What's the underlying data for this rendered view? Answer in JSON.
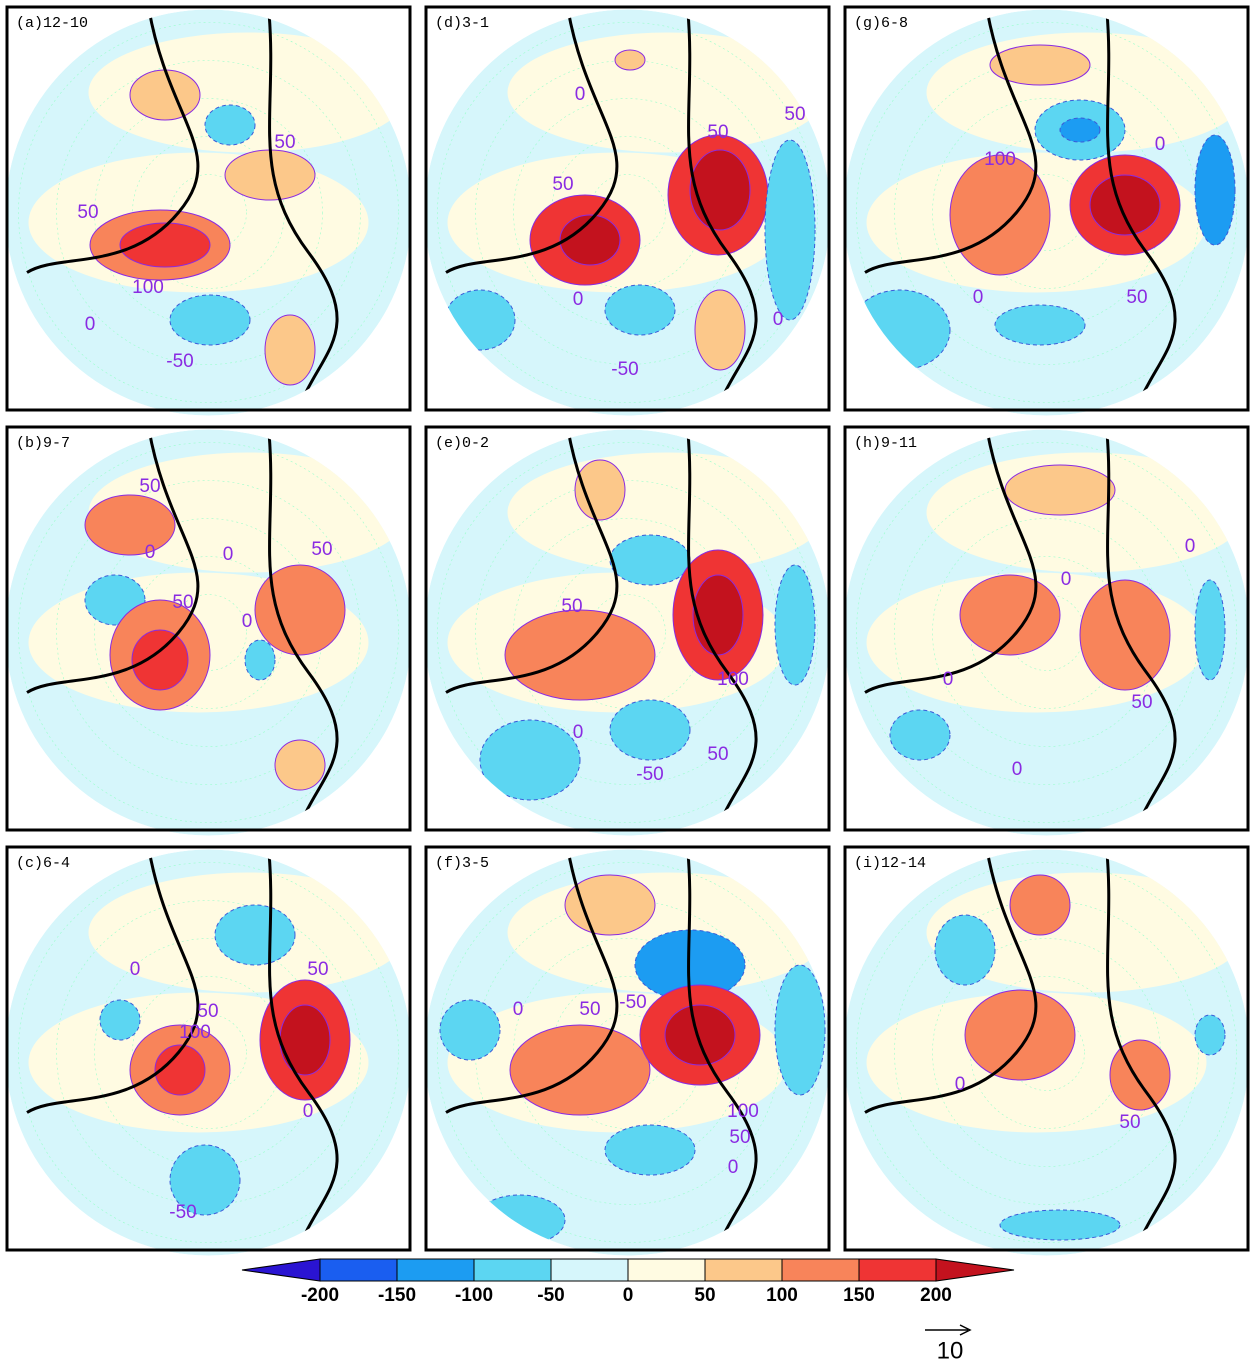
{
  "panels": [
    {
      "title": "(a)12-10",
      "contour_labels": [
        "50",
        "50",
        "100",
        "0",
        "-50"
      ]
    },
    {
      "title": "(d)3-1",
      "contour_labels": [
        "0",
        "50",
        "50",
        "50",
        "0",
        "-50",
        "0"
      ]
    },
    {
      "title": "(g)6-8",
      "contour_labels": [
        "100",
        "0",
        "0",
        "50"
      ]
    },
    {
      "title": "(b)9-7",
      "contour_labels": [
        "50",
        "0",
        "0",
        "50",
        "50",
        "0"
      ]
    },
    {
      "title": "(e)0-2",
      "contour_labels": [
        "50",
        "100",
        "0",
        "-50",
        "50"
      ]
    },
    {
      "title": "(h)9-11",
      "contour_labels": [
        "0",
        "0",
        "0",
        "50",
        "0"
      ]
    },
    {
      "title": "(c)6-4",
      "contour_labels": [
        "0",
        "50",
        "100",
        "50",
        "0",
        "-50"
      ]
    },
    {
      "title": "(f)3-5",
      "contour_labels": [
        "0",
        "50",
        "-50",
        "100",
        "50",
        "0"
      ]
    },
    {
      "title": "(i)12-14",
      "contour_labels": [
        "0",
        "50"
      ]
    }
  ],
  "colorbar": {
    "ticks": [
      -200,
      -150,
      -100,
      -50,
      0,
      50,
      100,
      150,
      200
    ],
    "colors": [
      "#2a14d2",
      "#1a5ef0",
      "#1c9cf2",
      "#5cd6f2",
      "#d6f6fb",
      "#fffbe2",
      "#fcc88a",
      "#f8845a",
      "#ef3434",
      "#c3121e"
    ]
  },
  "vector_key": {
    "label": "10"
  }
}
